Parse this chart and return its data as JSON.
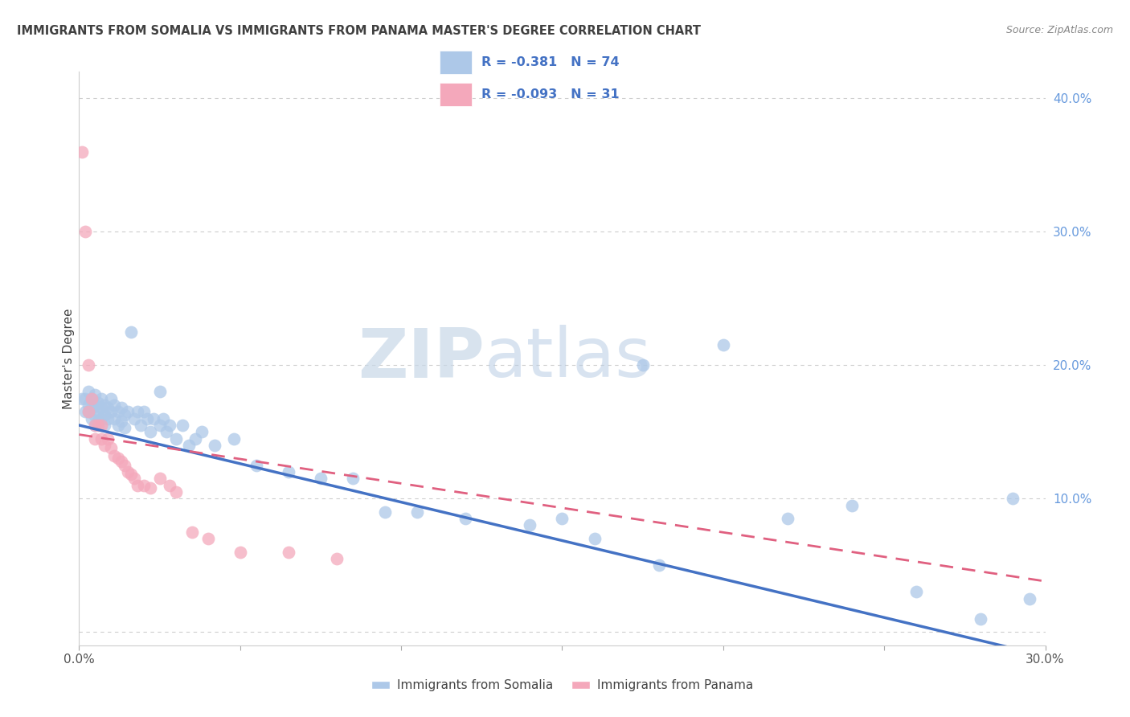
{
  "title": "IMMIGRANTS FROM SOMALIA VS IMMIGRANTS FROM PANAMA MASTER'S DEGREE CORRELATION CHART",
  "source": "Source: ZipAtlas.com",
  "ylabel": "Master's Degree",
  "watermark_zip": "ZIP",
  "watermark_atlas": "atlas",
  "xlim": [
    0.0,
    0.3
  ],
  "ylim": [
    -0.01,
    0.42
  ],
  "yticks": [
    0.0,
    0.1,
    0.2,
    0.3,
    0.4
  ],
  "ytick_labels": [
    "",
    "10.0%",
    "20.0%",
    "30.0%",
    "40.0%"
  ],
  "xticks": [
    0.0,
    0.05,
    0.1,
    0.15,
    0.2,
    0.25,
    0.3
  ],
  "xtick_labels": [
    "0.0%",
    "",
    "",
    "",
    "",
    "",
    "30.0%"
  ],
  "somalia_R": -0.381,
  "somalia_N": 74,
  "panama_R": -0.093,
  "panama_N": 31,
  "somalia_color": "#adc8e8",
  "panama_color": "#f4a8bb",
  "somalia_line_color": "#4472c4",
  "panama_line_color": "#e06080",
  "background_color": "#ffffff",
  "grid_color": "#c8c8c8",
  "title_color": "#404040",
  "right_ytick_color": "#6699dd",
  "legend_text_color": "#4472c4",
  "somalia_x": [
    0.001,
    0.002,
    0.002,
    0.003,
    0.003,
    0.003,
    0.004,
    0.004,
    0.004,
    0.005,
    0.005,
    0.005,
    0.005,
    0.006,
    0.006,
    0.006,
    0.007,
    0.007,
    0.007,
    0.008,
    0.008,
    0.008,
    0.009,
    0.009,
    0.01,
    0.01,
    0.011,
    0.011,
    0.012,
    0.012,
    0.013,
    0.013,
    0.014,
    0.014,
    0.015,
    0.016,
    0.017,
    0.018,
    0.019,
    0.02,
    0.021,
    0.022,
    0.023,
    0.025,
    0.026,
    0.027,
    0.028,
    0.03,
    0.032,
    0.034,
    0.036,
    0.038,
    0.042,
    0.048,
    0.055,
    0.065,
    0.075,
    0.085,
    0.095,
    0.105,
    0.12,
    0.14,
    0.16,
    0.18,
    0.2,
    0.22,
    0.24,
    0.26,
    0.28,
    0.29,
    0.295,
    0.025,
    0.15,
    0.175
  ],
  "somalia_y": [
    0.175,
    0.175,
    0.165,
    0.18,
    0.17,
    0.165,
    0.175,
    0.168,
    0.16,
    0.178,
    0.17,
    0.162,
    0.155,
    0.172,
    0.165,
    0.158,
    0.175,
    0.168,
    0.16,
    0.17,
    0.163,
    0.155,
    0.168,
    0.16,
    0.175,
    0.165,
    0.17,
    0.16,
    0.165,
    0.155,
    0.168,
    0.158,
    0.163,
    0.153,
    0.165,
    0.225,
    0.16,
    0.165,
    0.155,
    0.165,
    0.16,
    0.15,
    0.16,
    0.155,
    0.16,
    0.15,
    0.155,
    0.145,
    0.155,
    0.14,
    0.145,
    0.15,
    0.14,
    0.145,
    0.125,
    0.12,
    0.115,
    0.115,
    0.09,
    0.09,
    0.085,
    0.08,
    0.07,
    0.05,
    0.215,
    0.085,
    0.095,
    0.03,
    0.01,
    0.1,
    0.025,
    0.18,
    0.085,
    0.2
  ],
  "panama_x": [
    0.001,
    0.002,
    0.003,
    0.003,
    0.004,
    0.005,
    0.005,
    0.006,
    0.007,
    0.007,
    0.008,
    0.009,
    0.01,
    0.011,
    0.012,
    0.013,
    0.014,
    0.015,
    0.016,
    0.017,
    0.018,
    0.02,
    0.022,
    0.025,
    0.028,
    0.03,
    0.035,
    0.04,
    0.05,
    0.065,
    0.08
  ],
  "panama_y": [
    0.36,
    0.3,
    0.2,
    0.165,
    0.175,
    0.155,
    0.145,
    0.155,
    0.155,
    0.145,
    0.14,
    0.145,
    0.138,
    0.132,
    0.13,
    0.128,
    0.125,
    0.12,
    0.118,
    0.115,
    0.11,
    0.11,
    0.108,
    0.115,
    0.11,
    0.105,
    0.075,
    0.07,
    0.06,
    0.06,
    0.055
  ],
  "somalia_line_x0": 0.0,
  "somalia_line_y0": 0.155,
  "somalia_line_x1": 0.3,
  "somalia_line_y1": -0.018,
  "panama_line_x0": 0.0,
  "panama_line_y0": 0.148,
  "panama_line_x1": 0.3,
  "panama_line_y1": 0.038
}
